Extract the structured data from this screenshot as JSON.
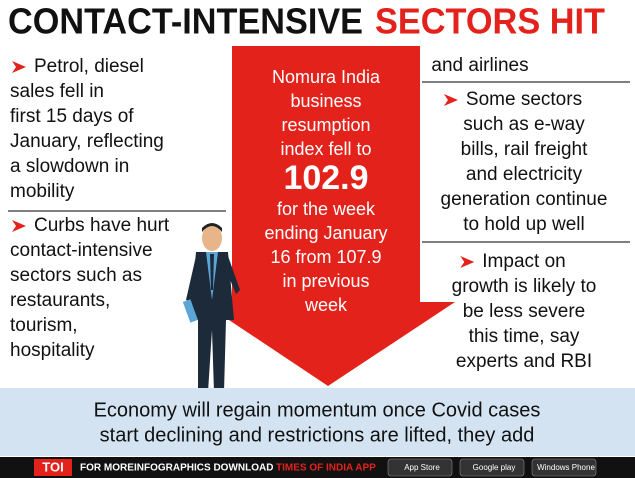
{
  "header": {
    "title_black": "CONTACT-INTENSIVE",
    "title_red": "SECTORS HIT"
  },
  "left": {
    "bullets": [
      [
        "Petrol, diesel",
        "sales fell in",
        "first 15 days of",
        "January, reflecting",
        "a slowdown in",
        "mobility"
      ],
      [
        "Curbs have hurt",
        "contact-intensive",
        "sectors such as",
        "restaurants,",
        "tourism,",
        "hospitality"
      ]
    ]
  },
  "center": {
    "lines_top": [
      "Nomura India",
      "business",
      "resumption",
      "index fell to"
    ],
    "figure": "102.9",
    "lines_bottom": [
      "for the week",
      "ending January",
      "16 from 107.9",
      "in previous",
      "week"
    ]
  },
  "right": {
    "continued": "and airlines",
    "bullets": [
      [
        "Some sectors",
        "such as e-way",
        "bills, rail freight",
        "and electricity",
        "generation continue",
        "to hold up well"
      ],
      [
        "Impact on",
        "growth is likely to",
        "be less severe",
        "this time, say",
        "experts and RBI"
      ]
    ]
  },
  "bottom": {
    "lines": [
      "Economy will regain momentum once Covid cases",
      "start declining and restrictions are lifted, they add"
    ]
  },
  "footer": {
    "brand": "TOI",
    "more": "FOR MORE",
    "download": "INFOGRAPHICS DOWNLOAD",
    "app": "TIMES OF INDIA APP",
    "stores": [
      "App Store",
      "Google play",
      "Windows Phone"
    ]
  }
}
